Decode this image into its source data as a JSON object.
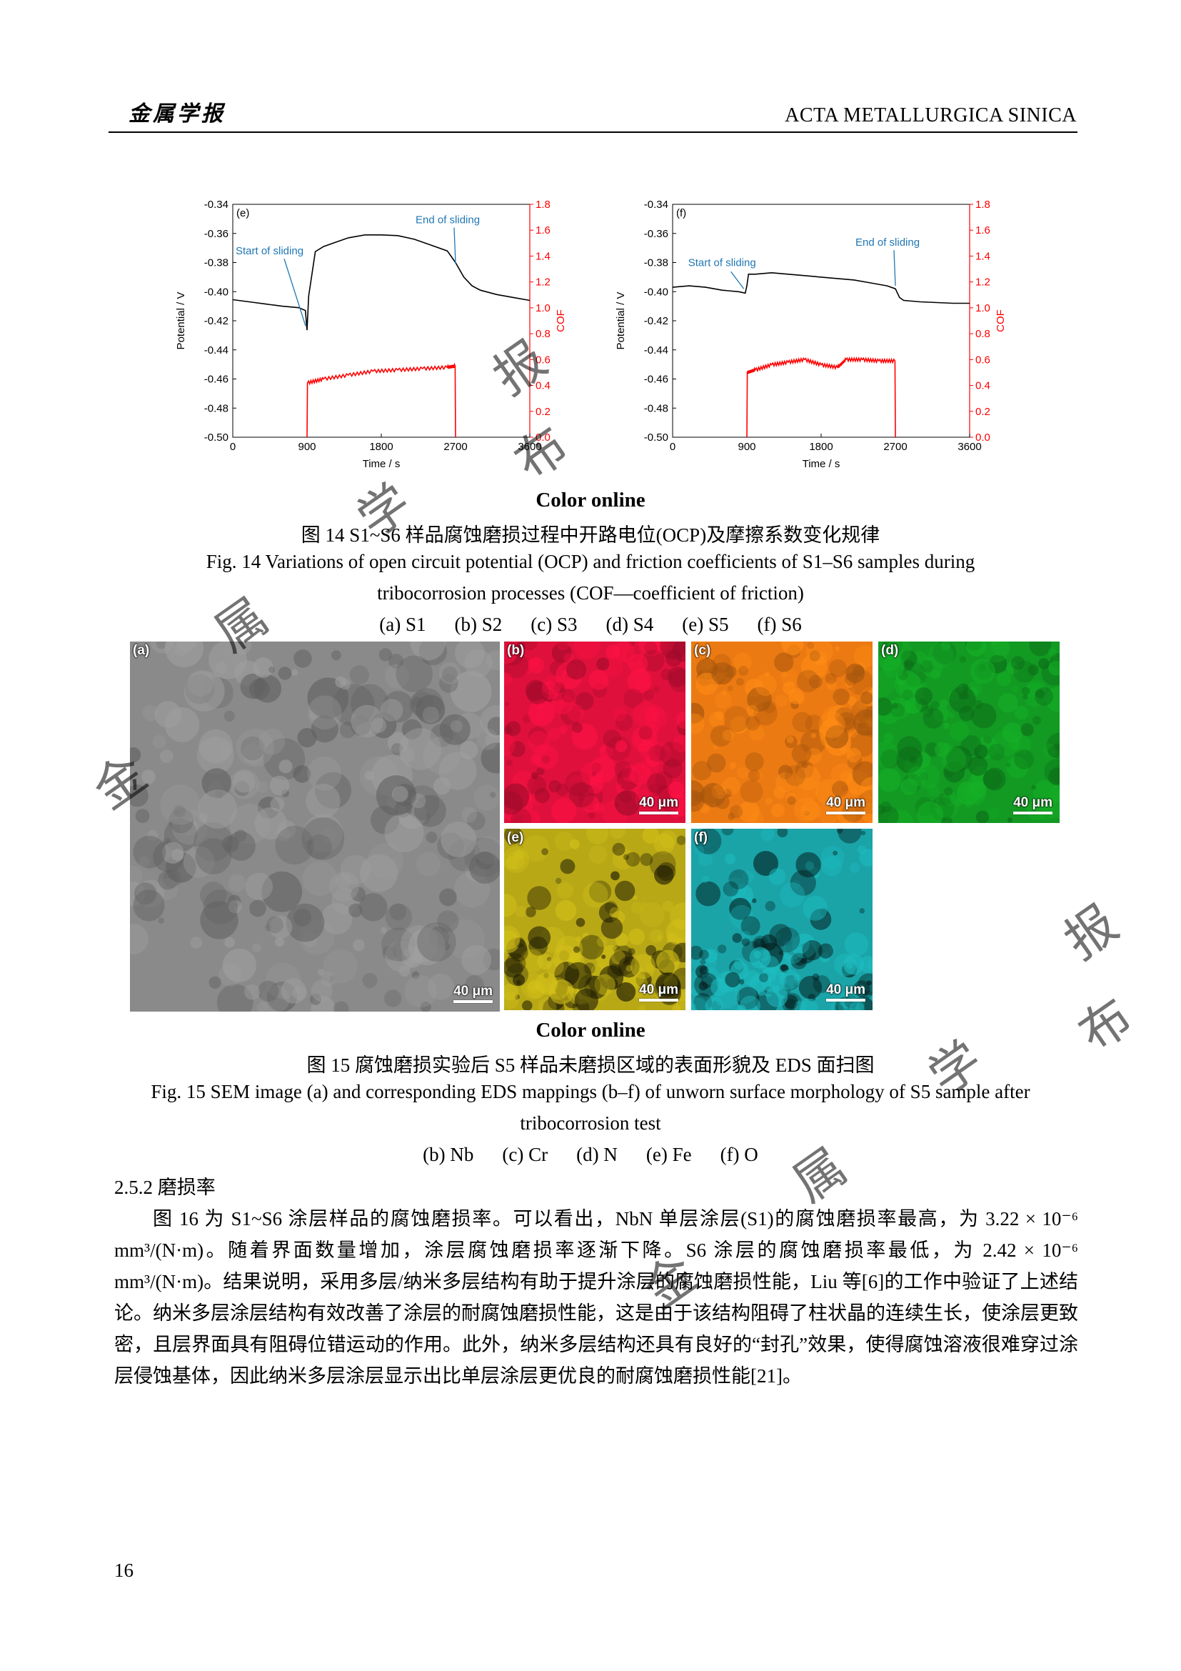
{
  "header": {
    "journal_cn": "金属学报",
    "journal_en": "ACTA METALLURGICA SINICA"
  },
  "chart_data": [
    {
      "type": "line",
      "panel_label": "(e)",
      "xlabel": "Time / s",
      "ylabel": "Potential / V",
      "y2label": "COF",
      "xlim": [
        0,
        3600
      ],
      "ylim": [
        -0.5,
        -0.34
      ],
      "y2lim": [
        0.0,
        1.8
      ],
      "xticks": [
        "0",
        "900",
        "1800",
        "2700",
        "3600"
      ],
      "yticks": [
        "-0.34",
        "-0.36",
        "-0.38",
        "-0.40",
        "-0.42",
        "-0.44",
        "-0.46",
        "-0.48",
        "-0.50"
      ],
      "y2ticks": [
        "1.8",
        "1.6",
        "1.4",
        "1.2",
        "1.0",
        "0.8",
        "0.6",
        "0.4",
        "0.2",
        "0.0"
      ],
      "annotations": [
        {
          "text": "Start of sliding",
          "x": 900,
          "y": -0.4265
        },
        {
          "text": "End of sliding",
          "x": 2700,
          "y": -0.3825
        }
      ],
      "series": [
        {
          "axis": "left",
          "color": "#000000",
          "x": [
            0,
            200,
            400,
            600,
            800,
            880,
            900,
            920,
            1000,
            1100,
            1200,
            1400,
            1600,
            1800,
            2000,
            2200,
            2400,
            2600,
            2700,
            2750,
            2800,
            2900,
            3000,
            3200,
            3400,
            3600
          ],
          "y": [
            -0.4055,
            -0.407,
            -0.4085,
            -0.41,
            -0.411,
            -0.413,
            -0.4265,
            -0.403,
            -0.3725,
            -0.369,
            -0.367,
            -0.363,
            -0.361,
            -0.361,
            -0.3615,
            -0.364,
            -0.368,
            -0.372,
            -0.38,
            -0.385,
            -0.39,
            -0.396,
            -0.399,
            -0.402,
            -0.404,
            -0.406
          ]
        },
        {
          "axis": "right",
          "color": "#ff0000",
          "x": [
            900,
            905,
            1100,
            1400,
            1700,
            2000,
            2300,
            2600,
            2695,
            2700
          ],
          "y": [
            0.0,
            0.42,
            0.45,
            0.48,
            0.51,
            0.52,
            0.53,
            0.54,
            0.55,
            0.0
          ]
        }
      ]
    },
    {
      "type": "line",
      "panel_label": "(f)",
      "xlabel": "Time / s",
      "ylabel": "Potential / V",
      "y2label": "COF",
      "xlim": [
        0,
        3600
      ],
      "ylim": [
        -0.5,
        -0.34
      ],
      "y2lim": [
        0.0,
        1.8
      ],
      "xticks": [
        "0",
        "900",
        "1800",
        "2700",
        "3600"
      ],
      "yticks": [
        "-0.34",
        "-0.36",
        "-0.38",
        "-0.40",
        "-0.42",
        "-0.44",
        "-0.46",
        "-0.48",
        "-0.50"
      ],
      "y2ticks": [
        "1.8",
        "1.6",
        "1.4",
        "1.2",
        "1.0",
        "0.8",
        "0.6",
        "0.4",
        "0.2",
        "0.0"
      ],
      "annotations": [
        {
          "text": "Start of sliding",
          "x": 880,
          "y": -0.401
        },
        {
          "text": "End of sliding",
          "x": 2700,
          "y": -0.398
        }
      ],
      "series": [
        {
          "axis": "left",
          "color": "#000000",
          "x": [
            0,
            200,
            400,
            600,
            800,
            880,
            900,
            920,
            1000,
            1200,
            1400,
            1600,
            1800,
            2000,
            2200,
            2400,
            2600,
            2700,
            2750,
            2800,
            3000,
            3200,
            3400,
            3600
          ],
          "y": [
            -0.397,
            -0.396,
            -0.397,
            -0.399,
            -0.4,
            -0.401,
            -0.396,
            -0.388,
            -0.388,
            -0.387,
            -0.388,
            -0.389,
            -0.39,
            -0.391,
            -0.392,
            -0.394,
            -0.396,
            -0.398,
            -0.404,
            -0.406,
            -0.407,
            -0.4075,
            -0.408,
            -0.408
          ]
        },
        {
          "axis": "right",
          "color": "#ff0000",
          "x": [
            900,
            905,
            1000,
            1200,
            1400,
            1600,
            1800,
            2000,
            2100,
            2300,
            2500,
            2695,
            2700
          ],
          "y": [
            0.0,
            0.5,
            0.52,
            0.56,
            0.58,
            0.6,
            0.56,
            0.54,
            0.6,
            0.6,
            0.59,
            0.59,
            0.0
          ]
        }
      ]
    }
  ],
  "fig14": {
    "color_online": "Color online",
    "caption_cn": "图 14 S1~S6 样品腐蚀磨损过程中开路电位(OCP)及摩擦系数变化规律",
    "caption_en_1": "Fig. 14 Variations of open circuit potential (OCP) and friction coefficients of S1–S6 samples during",
    "caption_en_2": "tribocorrosion processes (COF—coefficient of friction)",
    "subcaptions": [
      "(a) S1",
      "(b) S2",
      "(c) S3",
      "(d) S4",
      "(e) S5",
      "(f) S6"
    ]
  },
  "fig15": {
    "panels": [
      {
        "label": "(a)",
        "scale": "40 μm",
        "color": "#8a8a8a"
      },
      {
        "label": "(b)",
        "scale": "40 μm",
        "color": "#e0103c"
      },
      {
        "label": "(c)",
        "scale": "40 μm",
        "color": "#ec7a12"
      },
      {
        "label": "(d)",
        "scale": "40 μm",
        "color": "#129a22"
      },
      {
        "label": "(e)",
        "scale": "40 μm",
        "color": "#b8a816"
      },
      {
        "label": "(f)",
        "scale": "40 μm",
        "color": "#1aa4a8"
      }
    ],
    "color_online": "Color online",
    "caption_cn": "图 15  腐蚀磨损实验后 S5 样品未磨损区域的表面形貌及 EDS 面扫图",
    "caption_en_1": "Fig. 15 SEM image (a) and corresponding EDS mappings (b–f) of unworn surface morphology of S5 sample after",
    "caption_en_2": "tribocorrosion test",
    "subcaptions": [
      "(b) Nb",
      "(c) Cr",
      "(d) N",
      "(e) Fe",
      "(f) O"
    ]
  },
  "section": {
    "heading": "2.5.2  磨损率",
    "p1": "图 16 为 S1~S6 涂层样品的腐蚀磨损率。可以看出，NbN 单层涂层(S1)的腐蚀磨损率最高，为 3.22 × 10⁻⁶ mm³/(N·m)。随着界面数量增加，涂层腐蚀磨损率逐渐下降。S6 涂层的腐蚀磨损率最低，为 2.42 × 10⁻⁶ mm³/(N·m)。结果说明，采用多层/纳米多层结构有助于提升涂层的腐蚀磨损性能，Liu 等[6]的工作中验证了上述结论。纳米多层涂层结构有效改善了涂层的耐腐蚀磨损性能，这是由于该结构阻碍了柱状晶的连续生长，使涂层更致密，且层界面具有阻碍位错运动的作用。此外，纳米多层结构还具有良好的“封孔”效果，使得腐蚀溶液很难穿过涂层侵蚀基体，因此纳米多层涂层显示出比单层涂层更优良的耐腐蚀磨损性能[21]。"
  },
  "page_number": "16"
}
